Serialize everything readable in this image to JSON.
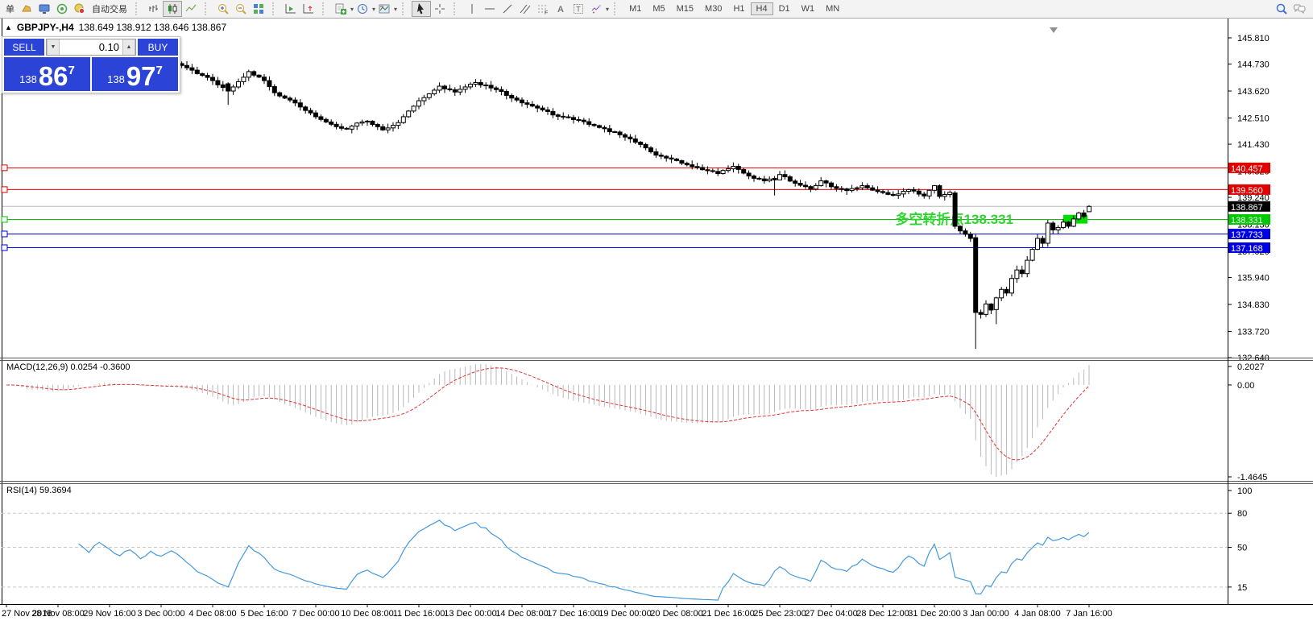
{
  "toolbar": {
    "groups": [
      {
        "items": [
          {
            "name": "new-order-button",
            "text": "单"
          },
          {
            "name": "metaeditor-icon-button",
            "icon": "doc"
          },
          {
            "name": "charts-window-button",
            "icon": "monitor"
          },
          {
            "name": "signals-button",
            "icon": "signal"
          },
          {
            "name": "autotrading-button",
            "icon": "robot",
            "text": "自动交易"
          }
        ]
      },
      {
        "items": [
          {
            "name": "bar-chart-button",
            "icon": "bars"
          },
          {
            "name": "candlestick-chart-button",
            "icon": "candles",
            "active": true
          },
          {
            "name": "line-chart-button",
            "icon": "linechart"
          }
        ]
      },
      {
        "items": [
          {
            "name": "zoom-in-button",
            "icon": "zoomin"
          },
          {
            "name": "zoom-out-button",
            "icon": "zoomout"
          },
          {
            "name": "tile-windows-button",
            "icon": "tile"
          }
        ]
      },
      {
        "items": [
          {
            "name": "auto-scroll-button",
            "icon": "autoscroll"
          },
          {
            "name": "chart-shift-button",
            "icon": "shift"
          }
        ]
      },
      {
        "items": [
          {
            "name": "indicators-button",
            "icon": "indicator",
            "caret": true
          },
          {
            "name": "periods-button",
            "icon": "clock",
            "caret": true
          },
          {
            "name": "templates-button",
            "icon": "template",
            "caret": true
          }
        ]
      },
      {
        "items": [
          {
            "name": "cursor-button",
            "icon": "cursor",
            "active": true
          },
          {
            "name": "crosshair-button",
            "icon": "crosshair"
          }
        ]
      },
      {
        "items": [
          {
            "name": "vline-button",
            "icon": "vline"
          },
          {
            "name": "hline-button",
            "icon": "hline"
          },
          {
            "name": "trendline-button",
            "icon": "trendline"
          },
          {
            "name": "channel-button",
            "icon": "channel"
          },
          {
            "name": "fibonacci-button",
            "icon": "fibo"
          },
          {
            "name": "text-button",
            "icon": "textA"
          },
          {
            "name": "text-label-button",
            "icon": "textT"
          },
          {
            "name": "arrows-button",
            "icon": "arrows",
            "caret": true
          }
        ]
      }
    ],
    "timeframes": [
      "M1",
      "M5",
      "M15",
      "M30",
      "H1",
      "H4",
      "D1",
      "W1",
      "MN"
    ],
    "active_timeframe": "H4",
    "right_icons": [
      {
        "name": "search-icon-button",
        "icon": "search"
      },
      {
        "name": "chat-icon-button",
        "icon": "chat"
      }
    ]
  },
  "chart": {
    "title": {
      "collapse": "▲",
      "symbol": "GBPJPY-,H4",
      "ohlc": "138.649 138.912 138.646 138.867"
    },
    "trade_panel": {
      "sell_label": "SELL",
      "buy_label": "BUY",
      "volume": "0.10",
      "spinner_down": "▼",
      "spinner_up": "▲",
      "bid": {
        "prefix": "138",
        "big": "86",
        "sup": "7"
      },
      "ask": {
        "prefix": "138",
        "big": "97",
        "sup": "7"
      }
    },
    "annotation": {
      "text": "多空转折点138.331",
      "color": "#2ed52e",
      "anchor_price": 138.331
    }
  },
  "macd_panel": {
    "label": "MACD(12,26,9) 0.0254 -0.3600"
  },
  "rsi_panel": {
    "label": "RSI(14) 59.3694"
  },
  "chart_data": {
    "type": "candlestick",
    "symbol": "GBPJPY-",
    "timeframe": "H4",
    "title": "GBPJPY-,H4",
    "last_bar": {
      "open": 138.649,
      "high": 138.912,
      "low": 138.646,
      "close": 138.867
    },
    "bid": 138.867,
    "y_axis_ticks": [
      145.81,
      144.73,
      143.62,
      142.51,
      141.43,
      140.32,
      139.24,
      138.13,
      137.02,
      135.94,
      134.83,
      133.72,
      132.64
    ],
    "x_axis_labels": [
      "27 Nov 2018",
      "28 Nov 08:00",
      "29 Nov 16:00",
      "3 Dec 00:00",
      "4 Dec 08:00",
      "5 Dec 16:00",
      "7 Dec 00:00",
      "10 Dec 08:00",
      "11 Dec 16:00",
      "13 Dec 00:00",
      "14 Dec 08:00",
      "17 Dec 16:00",
      "19 Dec 00:00",
      "20 Dec 08:00",
      "21 Dec 16:00",
      "25 Dec 23:00",
      "27 Dec 04:00",
      "28 Dec 12:00",
      "31 Dec 20:00",
      "3 Jan 00:00",
      "4 Jan 08:00",
      "7 Jan 16:00"
    ],
    "bars_per_x_label": 10,
    "horizontal_lines": [
      {
        "price": 140.457,
        "color": "#e00000",
        "label_bg": "#e00000",
        "anchor": true
      },
      {
        "price": 139.56,
        "color": "#e00000",
        "label_bg": "#e00000",
        "anchor": true
      },
      {
        "price": 138.867,
        "color": "#b8b8b8",
        "label_bg": "#000000",
        "anchor": false,
        "role": "bid-line"
      },
      {
        "price": 138.331,
        "color": "#00c800",
        "label_bg": "#00c800",
        "anchor": true
      },
      {
        "price": 137.733,
        "color": "#0000e0",
        "label_bg": "#0000e0",
        "anchor": true
      },
      {
        "price": 137.168,
        "color": "#0000e0",
        "label_bg": "#0000e0",
        "anchor": true
      }
    ],
    "green_box": {
      "price_top": 138.52,
      "price_bottom": 138.16,
      "color": "#00dd00"
    },
    "colors": {
      "bull_fill": "#ffffff",
      "bear_fill": "#000000",
      "outline": "#000000",
      "macd_histogram": "#b9b9b9",
      "macd_signal": "#e03535",
      "rsi_line": "#4499dd",
      "levels": "#c8c8c8"
    },
    "close_anchors": [
      [
        0,
        144.95
      ],
      [
        2,
        144.8
      ],
      [
        4,
        144.6
      ],
      [
        6,
        144.72
      ],
      [
        8,
        144.55
      ],
      [
        10,
        144.68
      ],
      [
        12,
        144.9
      ],
      [
        14,
        145.02
      ],
      [
        16,
        144.85
      ],
      [
        18,
        145.05
      ],
      [
        20,
        144.92
      ],
      [
        22,
        144.78
      ],
      [
        24,
        144.88
      ],
      [
        26,
        144.7
      ],
      [
        28,
        144.82
      ],
      [
        30,
        144.72
      ],
      [
        32,
        144.8
      ],
      [
        33,
        144.75
      ],
      [
        36,
        144.48
      ],
      [
        40,
        144.05
      ],
      [
        43,
        143.62
      ],
      [
        47,
        144.42
      ],
      [
        50,
        144.05
      ],
      [
        52,
        143.55
      ],
      [
        55,
        143.25
      ],
      [
        58,
        142.82
      ],
      [
        61,
        142.45
      ],
      [
        63,
        142.25
      ],
      [
        66,
        142.05
      ],
      [
        68,
        142.3
      ],
      [
        70,
        142.38
      ],
      [
        73,
        142.02
      ],
      [
        76,
        142.32
      ],
      [
        80,
        143.22
      ],
      [
        84,
        143.82
      ],
      [
        87,
        143.58
      ],
      [
        91,
        143.97
      ],
      [
        95,
        143.68
      ],
      [
        99,
        143.25
      ],
      [
        103,
        142.92
      ],
      [
        107,
        142.58
      ],
      [
        111,
        142.42
      ],
      [
        115,
        142.12
      ],
      [
        119,
        141.82
      ],
      [
        123,
        141.42
      ],
      [
        126,
        140.98
      ],
      [
        129,
        140.82
      ],
      [
        132,
        140.58
      ],
      [
        135,
        140.38
      ],
      [
        138,
        140.22
      ],
      [
        141,
        140.52
      ],
      [
        144,
        140.12
      ],
      [
        147,
        139.92
      ],
      [
        150,
        140.18
      ],
      [
        153,
        139.82
      ],
      [
        156,
        139.58
      ],
      [
        158,
        139.92
      ],
      [
        160,
        139.68
      ],
      [
        163,
        139.52
      ],
      [
        166,
        139.72
      ],
      [
        169,
        139.48
      ],
      [
        172,
        139.32
      ],
      [
        175,
        139.56
      ],
      [
        178,
        139.3
      ],
      [
        180,
        139.72
      ],
      [
        181,
        139.28
      ],
      [
        183,
        139.45
      ],
      [
        184,
        138.05
      ],
      [
        186,
        137.72
      ],
      [
        187,
        137.55
      ],
      [
        188,
        134.5
      ],
      [
        189,
        134.42
      ],
      [
        190,
        134.85
      ],
      [
        191,
        134.6
      ],
      [
        192,
        135.1
      ],
      [
        193,
        135.45
      ],
      [
        194,
        135.3
      ],
      [
        195,
        135.9
      ],
      [
        196,
        136.25
      ],
      [
        197,
        136.1
      ],
      [
        198,
        136.65
      ],
      [
        199,
        137.1
      ],
      [
        200,
        137.55
      ],
      [
        201,
        137.35
      ],
      [
        202,
        138.18
      ],
      [
        203,
        137.9
      ],
      [
        204,
        138.0
      ],
      [
        205,
        138.22
      ],
      [
        206,
        138.05
      ],
      [
        207,
        138.35
      ],
      [
        208,
        138.6
      ],
      [
        209,
        138.45
      ],
      [
        210,
        138.867
      ]
    ],
    "candle_overrides": {
      "43": [
        143.92,
        143.98,
        143.05,
        143.62
      ],
      "149": [
        140.02,
        140.12,
        139.32,
        139.96
      ],
      "184": [
        139.42,
        139.5,
        137.95,
        138.05
      ],
      "188": [
        137.58,
        137.75,
        133.0,
        134.5
      ],
      "192": [
        134.62,
        135.15,
        134.02,
        135.1
      ],
      "210": [
        138.649,
        138.912,
        138.646,
        138.867
      ]
    },
    "indicators": [
      {
        "type": "MACD",
        "params": [
          12,
          26,
          9
        ],
        "current_main": 0.0254,
        "current_signal": -0.36,
        "axis_ticks": [
          "0.2027",
          "0.00",
          "-1.4645"
        ]
      },
      {
        "type": "RSI",
        "params": [
          14
        ],
        "current_value": 59.3694,
        "levels": [
          80,
          50,
          15
        ],
        "axis_ticks": [
          "100",
          "80",
          "50",
          "15"
        ]
      }
    ]
  }
}
